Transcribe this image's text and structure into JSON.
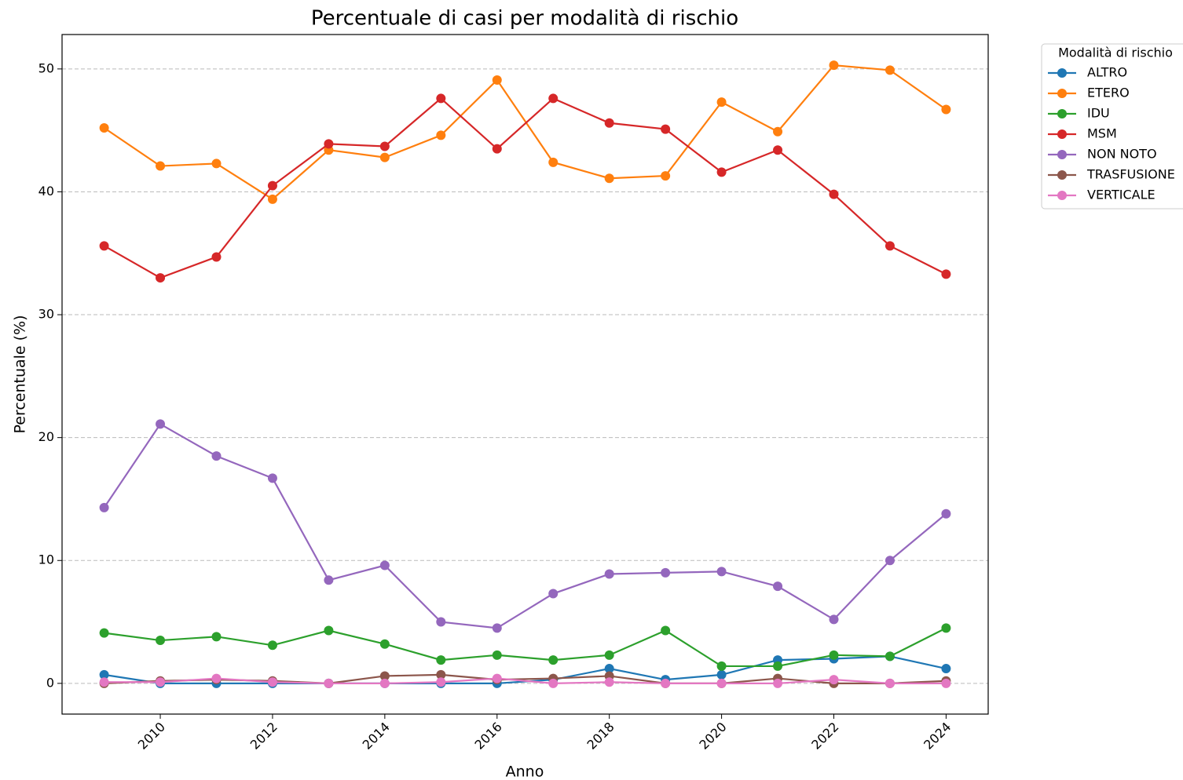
{
  "chart_data": {
    "type": "line",
    "title": "Percentuale di casi per modalità di rischio",
    "xlabel": "Anno",
    "ylabel": "Percentuale (%)",
    "legend_title": "Modalità di rischio",
    "legend": "outside upper right",
    "grid": "y",
    "x": [
      2009,
      2010,
      2011,
      2012,
      2013,
      2014,
      2015,
      2016,
      2017,
      2018,
      2019,
      2020,
      2021,
      2022,
      2023,
      2024
    ],
    "xlim": [
      2008.25,
      2024.75
    ],
    "xticks": [
      2010,
      2012,
      2014,
      2016,
      2018,
      2020,
      2022,
      2024
    ],
    "ylim": [
      -2.5,
      52.8
    ],
    "yticks": [
      0,
      10,
      20,
      30,
      40,
      50
    ],
    "series": [
      {
        "name": "ALTRO",
        "color": "#1f77b4",
        "values": [
          0.7,
          0,
          0,
          0,
          0,
          0,
          0,
          0,
          0.3,
          1.2,
          0.3,
          0.7,
          1.9,
          2.0,
          2.2,
          1.2
        ]
      },
      {
        "name": "ETERO",
        "color": "#ff7f0e",
        "values": [
          45.2,
          42.1,
          42.3,
          39.4,
          43.4,
          42.8,
          44.6,
          49.1,
          42.4,
          41.1,
          41.3,
          47.3,
          44.9,
          50.3,
          49.9,
          46.7
        ]
      },
      {
        "name": "IDU",
        "color": "#2ca02c",
        "values": [
          4.1,
          3.5,
          3.8,
          3.1,
          4.3,
          3.2,
          1.9,
          2.3,
          1.9,
          2.3,
          4.3,
          1.4,
          1.4,
          2.3,
          2.2,
          4.5
        ]
      },
      {
        "name": "MSM",
        "color": "#d62728",
        "values": [
          35.6,
          33.0,
          34.7,
          40.5,
          43.9,
          43.7,
          47.6,
          43.5,
          47.6,
          45.6,
          45.1,
          41.6,
          43.4,
          39.8,
          35.6,
          33.3
        ]
      },
      {
        "name": "NON NOTO",
        "color": "#9467bd",
        "values": [
          14.3,
          21.1,
          18.5,
          16.7,
          8.4,
          9.6,
          5.0,
          4.5,
          7.3,
          8.9,
          9.0,
          9.1,
          7.9,
          5.2,
          10.0,
          13.8
        ]
      },
      {
        "name": "TRASFUSIONE",
        "color": "#8c564b",
        "values": [
          0,
          0.2,
          0.3,
          0.2,
          0,
          0.6,
          0.7,
          0.3,
          0.4,
          0.6,
          0,
          0,
          0.4,
          0,
          0,
          0.2
        ]
      },
      {
        "name": "VERTICALE",
        "color": "#e377c2",
        "values": [
          0.1,
          0.1,
          0.4,
          0.1,
          0,
          0,
          0.1,
          0.4,
          0,
          0.1,
          0,
          0,
          0,
          0.3,
          0,
          0
        ]
      }
    ]
  }
}
